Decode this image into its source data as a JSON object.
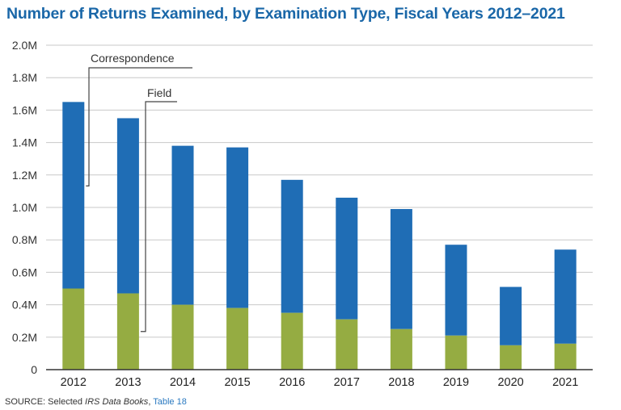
{
  "title": "Number of Returns Examined, by Examination Type, Fiscal Years 2012–2021",
  "source": {
    "prefix": "SOURCE: Selected ",
    "italic": "IRS Data Books",
    "sep": ", ",
    "link": "Table 18"
  },
  "colors": {
    "correspondence": "#1f6db5",
    "field": "#95ac42",
    "grid": "#c8c8c8",
    "axis": "#333333",
    "callout": "#444444"
  },
  "chart_data": {
    "type": "bar",
    "stacked": true,
    "title": "Number of Returns Examined, by Examination Type, Fiscal Years 2012–2021",
    "categories": [
      "2012",
      "2013",
      "2014",
      "2015",
      "2016",
      "2017",
      "2018",
      "2019",
      "2020",
      "2021"
    ],
    "series": [
      {
        "name": "Field",
        "color": "#95ac42",
        "values": [
          0.5,
          0.47,
          0.4,
          0.38,
          0.35,
          0.31,
          0.25,
          0.21,
          0.15,
          0.16
        ]
      },
      {
        "name": "Correspondence",
        "color": "#1f6db5",
        "values": [
          1.15,
          1.08,
          0.98,
          0.99,
          0.82,
          0.75,
          0.74,
          0.56,
          0.36,
          0.58
        ]
      }
    ],
    "ylim": [
      0,
      2.0
    ],
    "yticks": [
      0,
      0.2,
      0.4,
      0.6,
      0.8,
      1.0,
      1.2,
      1.4,
      1.6,
      1.8,
      2.0
    ],
    "ytick_labels": [
      "0",
      "0.2M",
      "0.4M",
      "0.6M",
      "0.8M",
      "1.0M",
      "1.2M",
      "1.4M",
      "1.6M",
      "1.8M",
      "2.0M"
    ],
    "grid": true,
    "legend": "callout-labels"
  }
}
